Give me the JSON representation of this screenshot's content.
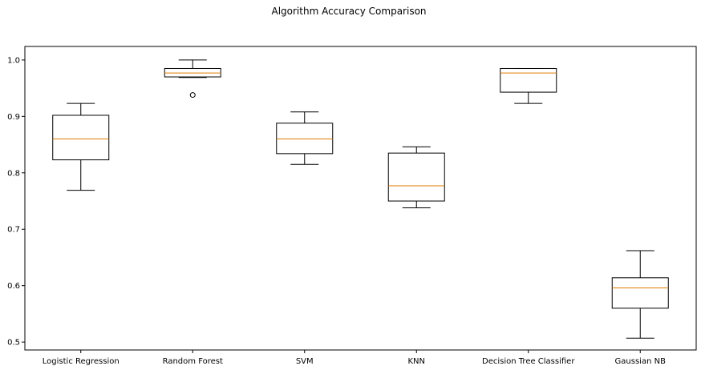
{
  "chart_data": {
    "type": "box",
    "title": "Algorithm Accuracy Comparison",
    "xlabel": "",
    "ylabel": "",
    "ylim": [
      0.486,
      1.024
    ],
    "yticks": [
      0.5,
      0.6,
      0.7,
      0.8,
      0.9,
      1.0
    ],
    "ytick_labels": [
      "0.5",
      "0.6",
      "0.7",
      "0.8",
      "0.9",
      "1.0"
    ],
    "grid": false,
    "legend": "none",
    "colors": {
      "box": "#000000",
      "median": "#e07b00",
      "outlier": "#000000"
    },
    "categories": [
      "Logistic Regression",
      "Random Forest",
      "SVM",
      "KNN",
      "Decision Tree Classifier",
      "Gaussian NB"
    ],
    "boxes": [
      {
        "whisker_low": 0.769,
        "q1": 0.823,
        "median": 0.86,
        "q3": 0.902,
        "whisker_high": 0.923,
        "outliers": []
      },
      {
        "whisker_low": 0.969,
        "q1": 0.97,
        "median": 0.977,
        "q3": 0.985,
        "whisker_high": 1.0,
        "outliers": [
          0.938
        ]
      },
      {
        "whisker_low": 0.815,
        "q1": 0.834,
        "median": 0.86,
        "q3": 0.888,
        "whisker_high": 0.908,
        "outliers": []
      },
      {
        "whisker_low": 0.738,
        "q1": 0.75,
        "median": 0.777,
        "q3": 0.835,
        "whisker_high": 0.846,
        "outliers": []
      },
      {
        "whisker_low": 0.923,
        "q1": 0.943,
        "median": 0.977,
        "q3": 0.985,
        "whisker_high": 0.985,
        "outliers": []
      },
      {
        "whisker_low": 0.507,
        "q1": 0.56,
        "median": 0.596,
        "q3": 0.614,
        "whisker_high": 0.662,
        "outliers": []
      }
    ]
  }
}
